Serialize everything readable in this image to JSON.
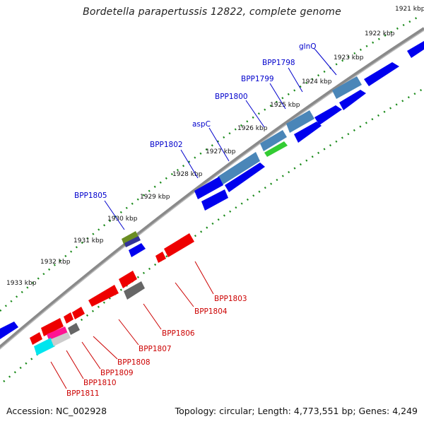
{
  "title": "Bordetella parapertussis 12822, complete genome",
  "footer": {
    "accession": "Accession: NC_002928",
    "summary": "Topology: circular; Length: 4,773,551 bp; Genes: 4,249"
  },
  "colors": {
    "forward_gene": "#0000ee",
    "reverse_gene": "#ee0000",
    "forward_label": "#0000cc",
    "reverse_label": "#cc0000",
    "backbone": "#8a8a8a",
    "tick": "#1a8a1a"
  },
  "kbp_ticks": [
    "1921 kbp",
    "1922 kbp",
    "1923 kbp",
    "1924 kbp",
    "1925 kbp",
    "1926 kbp",
    "1927 kbp",
    "1928 kbp",
    "1929 kbp",
    "1930 kbp",
    "1931 kbp",
    "1932 kbp",
    "1933 kbp"
  ],
  "genes": {
    "forward": [
      "glnQ",
      "BPP1798",
      "BPP1799",
      "BPP1800",
      "aspC",
      "BPP1802",
      "BPP1805"
    ],
    "reverse": [
      "BPP1803",
      "BPP1804",
      "BPP1806",
      "BPP1807",
      "BPP1808",
      "BPP1809",
      "BPP1810",
      "BPP1811"
    ]
  }
}
